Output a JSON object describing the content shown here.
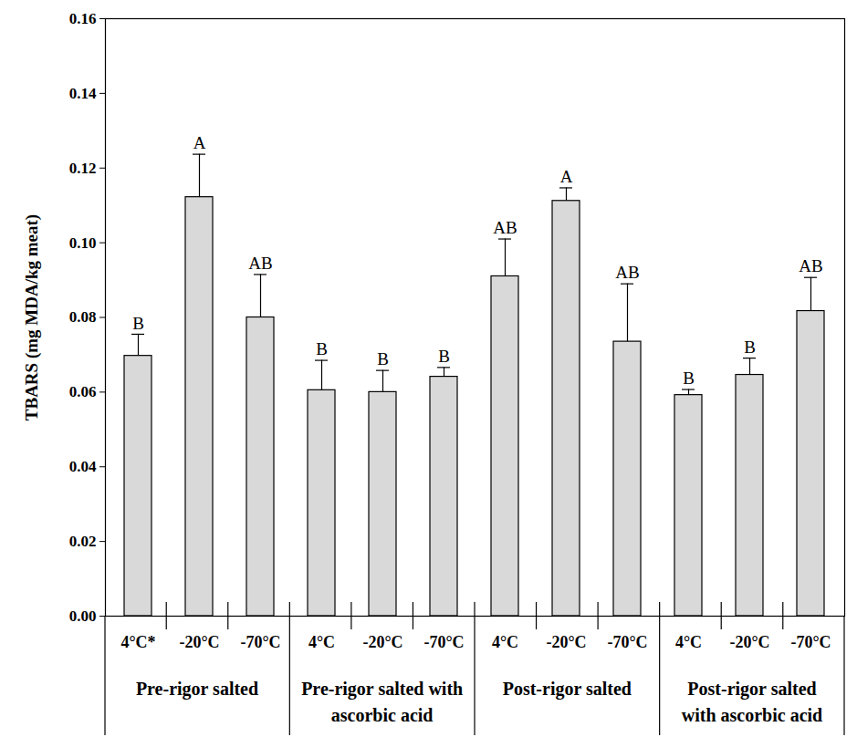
{
  "chart_data": {
    "type": "bar",
    "ylabel": "TBARS (mg MDA/kg meat)",
    "categories": [
      "4°C*",
      "-20°C",
      "-70°C",
      "4°C",
      "-20°C",
      "-70°C",
      "4°C",
      "-20°C",
      "-70°C",
      "4°C",
      "-20°C",
      "-70°C"
    ],
    "groups": [
      "Pre-rigor salted",
      "Pre-rigor salted with ascorbic acid",
      "Post-rigor salted",
      "Post-rigor salted with ascorbic acid"
    ],
    "values": [
      0.0697,
      0.1122,
      0.08,
      0.0605,
      0.06,
      0.0641,
      0.091,
      0.1112,
      0.0735,
      0.0592,
      0.0646,
      0.0817
    ],
    "errors": [
      0.0058,
      0.0115,
      0.0115,
      0.008,
      0.0058,
      0.0025,
      0.01,
      0.0035,
      0.0155,
      0.0015,
      0.0045,
      0.009
    ],
    "annotations": [
      "B",
      "A",
      "AB",
      "B",
      "B",
      "B",
      "AB",
      "A",
      "AB",
      "B",
      "B",
      "AB"
    ],
    "color": "#d9d9d9",
    "ylim": [
      0,
      0.16
    ],
    "yticks": [
      {
        "value": 0,
        "label": "0.00"
      },
      {
        "value": 0.02,
        "label": "0.02"
      },
      {
        "value": 0.04,
        "label": "0.04"
      },
      {
        "value": 0.06,
        "label": "0.06"
      },
      {
        "value": 0.08,
        "label": "0.08"
      },
      {
        "value": 0.1,
        "label": "0.10"
      },
      {
        "value": 0.12,
        "label": "0.12"
      },
      {
        "value": 0.14,
        "label": "0.14"
      },
      {
        "value": 0.16,
        "label": "0.16"
      }
    ],
    "grid": false
  }
}
